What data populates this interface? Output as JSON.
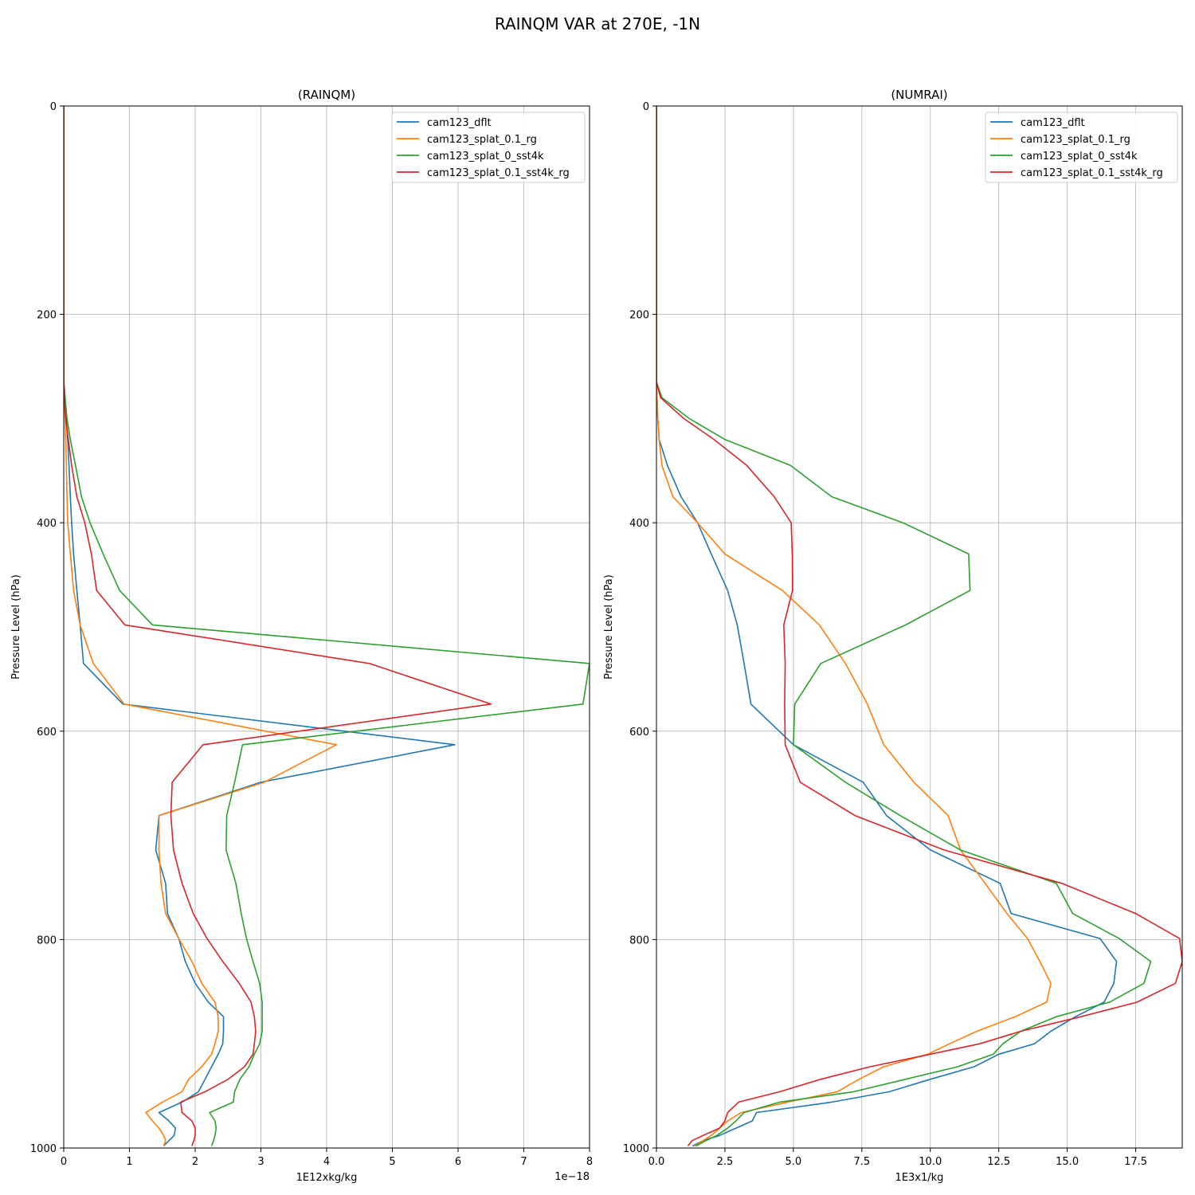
{
  "figure": {
    "suptitle": "RAINQM VAR at 270E, -1N"
  },
  "chart_data": [
    {
      "type": "line",
      "title": "(RAINQM)",
      "xlabel": "1E12xkg/kg",
      "ylabel": "Pressure Level (hPa)",
      "x_offset_label": "1e−18",
      "xlim": [
        0,
        8
      ],
      "ylim": [
        1000,
        0
      ],
      "y_inverted": true,
      "grid": true,
      "legend": "top-right",
      "xticks": [
        0,
        1,
        2,
        3,
        4,
        5,
        6,
        7,
        8
      ],
      "xtick_labels": [
        "0",
        "1",
        "2",
        "3",
        "4",
        "5",
        "6",
        "7",
        "8"
      ],
      "yticks": [
        0,
        200,
        400,
        600,
        800,
        1000
      ],
      "ytick_labels": [
        "0",
        "200",
        "400",
        "600",
        "800",
        "1000"
      ],
      "levels": [
        265,
        280,
        300,
        320,
        345,
        375,
        400,
        430,
        465,
        498,
        535,
        574,
        613,
        649,
        681,
        714,
        746,
        775,
        799,
        821,
        842,
        860,
        874,
        888,
        900,
        910,
        922,
        934,
        946,
        956,
        966,
        974,
        981,
        988,
        993,
        998
      ],
      "series": [
        {
          "name": "cam123_dflt",
          "color": "#1f77b4",
          "x": [
            0,
            0.02,
            0.04,
            0.06,
            0.08,
            0.1,
            0.12,
            0.15,
            0.2,
            0.25,
            0.3,
            0.9,
            5.95,
            3.0,
            1.45,
            1.4,
            1.55,
            1.58,
            1.75,
            1.85,
            2.0,
            2.2,
            2.43,
            2.43,
            2.42,
            2.35,
            2.25,
            2.15,
            2.05,
            1.8,
            1.45,
            1.6,
            1.7,
            1.68,
            1.6,
            1.52
          ]
        },
        {
          "name": "cam123_splat_0.1_rg",
          "color": "#ff7f0e",
          "x": [
            0,
            0.01,
            0.02,
            0.03,
            0.04,
            0.05,
            0.06,
            0.1,
            0.15,
            0.25,
            0.45,
            0.92,
            4.15,
            3.05,
            1.45,
            1.45,
            1.48,
            1.55,
            1.75,
            1.95,
            2.1,
            2.3,
            2.35,
            2.35,
            2.3,
            2.25,
            2.1,
            1.9,
            1.8,
            1.5,
            1.25,
            1.35,
            1.45,
            1.52,
            1.55,
            1.52
          ]
        },
        {
          "name": "cam123_splat_0_sst4k",
          "color": "#2ca02c",
          "x": [
            0,
            0.02,
            0.05,
            0.1,
            0.18,
            0.27,
            0.4,
            0.6,
            0.85,
            1.35,
            8.0,
            7.9,
            2.72,
            2.6,
            2.48,
            2.47,
            2.62,
            2.7,
            2.78,
            2.88,
            2.98,
            3.02,
            3.02,
            3.02,
            2.98,
            2.9,
            2.82,
            2.68,
            2.6,
            2.58,
            2.22,
            2.3,
            2.32,
            2.3,
            2.28,
            2.25
          ]
        },
        {
          "name": "cam123_splat_0.1_sst4k_rg",
          "color": "#d62728",
          "x": [
            0,
            0.01,
            0.03,
            0.07,
            0.12,
            0.2,
            0.32,
            0.42,
            0.5,
            0.93,
            4.65,
            6.5,
            2.12,
            1.65,
            1.63,
            1.67,
            1.8,
            1.97,
            2.18,
            2.42,
            2.67,
            2.85,
            2.9,
            2.92,
            2.9,
            2.88,
            2.75,
            2.5,
            2.15,
            1.78,
            1.8,
            1.95,
            2.0,
            2.0,
            1.98,
            1.95
          ]
        }
      ]
    },
    {
      "type": "line",
      "title": "(NUMRAI)",
      "xlabel": "1E3x1/kg",
      "ylabel": "Pressure Level (hPa)",
      "xlim": [
        0,
        19.2
      ],
      "ylim": [
        1000,
        0
      ],
      "y_inverted": true,
      "grid": true,
      "legend": "top-right",
      "xticks": [
        0,
        2.5,
        5,
        7.5,
        10,
        12.5,
        15,
        17.5
      ],
      "xtick_labels": [
        "0.0",
        "2.5",
        "5.0",
        "7.5",
        "10.0",
        "12.5",
        "15.0",
        "17.5"
      ],
      "yticks": [
        0,
        200,
        400,
        600,
        800,
        1000
      ],
      "ytick_labels": [
        "0",
        "200",
        "400",
        "600",
        "800",
        "1000"
      ],
      "levels": [
        265,
        280,
        300,
        320,
        345,
        375,
        400,
        430,
        465,
        498,
        535,
        574,
        613,
        649,
        681,
        714,
        746,
        775,
        799,
        821,
        842,
        860,
        874,
        888,
        900,
        910,
        922,
        934,
        946,
        956,
        966,
        974,
        981,
        988,
        993,
        998
      ],
      "series": [
        {
          "name": "cam123_dflt",
          "color": "#1f77b4",
          "x": [
            0,
            0.02,
            0.05,
            0.1,
            0.4,
            0.9,
            1.5,
            2.0,
            2.6,
            2.95,
            3.2,
            3.45,
            5.0,
            7.55,
            8.4,
            10.0,
            12.55,
            12.95,
            16.2,
            16.8,
            16.7,
            16.35,
            15.3,
            14.4,
            13.8,
            12.5,
            11.6,
            10.0,
            8.5,
            6.4,
            3.65,
            3.5,
            2.9,
            2.3,
            1.7,
            1.32
          ]
        },
        {
          "name": "cam123_splat_0.1_rg",
          "color": "#ff7f0e",
          "x": [
            0,
            0.02,
            0.05,
            0.1,
            0.2,
            0.6,
            1.5,
            2.5,
            4.6,
            5.95,
            6.9,
            7.7,
            8.3,
            9.4,
            10.65,
            11.1,
            12.0,
            12.8,
            13.55,
            14.0,
            14.4,
            14.25,
            13.1,
            11.7,
            10.7,
            9.9,
            8.3,
            7.4,
            6.6,
            4.8,
            3.1,
            2.6,
            2.3,
            2.0,
            1.7,
            1.4
          ]
        },
        {
          "name": "cam123_splat_0_sst4k",
          "color": "#2ca02c",
          "x": [
            0,
            0.2,
            1.2,
            2.5,
            4.9,
            6.4,
            9.0,
            11.4,
            11.45,
            9.1,
            6.0,
            5.05,
            5.0,
            6.9,
            8.9,
            11.1,
            14.6,
            15.2,
            16.9,
            18.05,
            17.8,
            16.55,
            14.6,
            13.3,
            12.65,
            12.3,
            11.0,
            9.1,
            7.2,
            4.5,
            3.2,
            2.9,
            2.6,
            2.2,
            1.8,
            1.45
          ]
        },
        {
          "name": "cam123_splat_0.1_sst4k_rg",
          "color": "#d62728",
          "x": [
            0,
            0.15,
            1.0,
            2.1,
            3.3,
            4.3,
            4.92,
            4.96,
            4.97,
            4.65,
            4.7,
            4.68,
            4.7,
            5.25,
            7.25,
            10.5,
            14.8,
            17.5,
            19.1,
            19.2,
            18.95,
            17.55,
            15.5,
            13.3,
            11.8,
            10.0,
            7.8,
            6.0,
            4.5,
            3.0,
            2.6,
            2.5,
            2.3,
            1.7,
            1.3,
            1.15
          ]
        }
      ]
    }
  ]
}
